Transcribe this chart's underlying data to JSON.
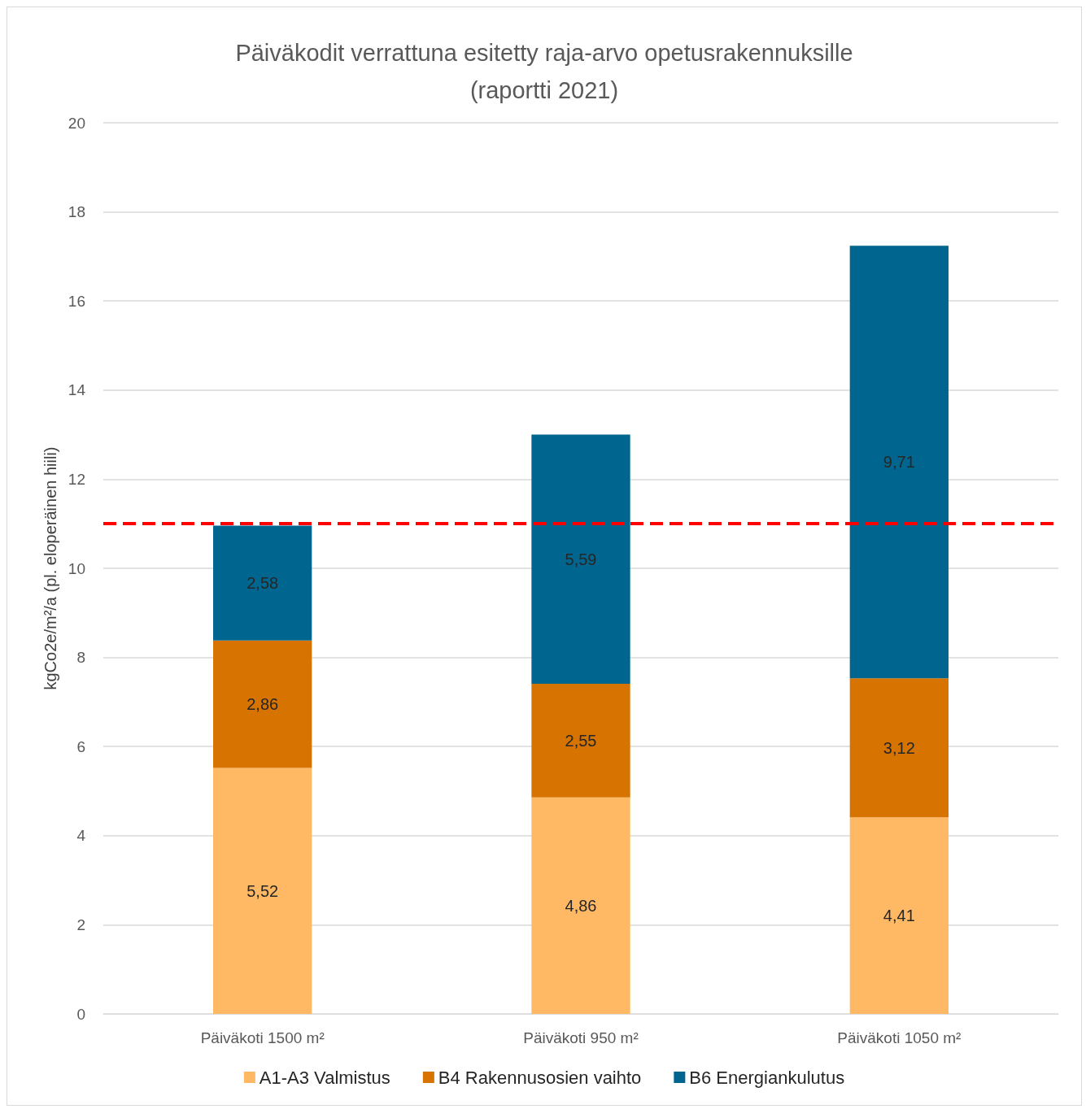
{
  "chart_data": {
    "type": "bar",
    "title": "Päiväkodit verrattuna esitetty raja-arvo opetusrakennuksille\n(raportti 2021)",
    "ylabel": "kgCo2e/m²/a (pl. eloperäinen hiili)",
    "categories": [
      "Päiväkoti 1500 m²",
      "Päiväkoti 950 m²",
      "Päiväkoti 1050 m²"
    ],
    "stacked": true,
    "series": [
      {
        "name": "A1-A3 Valmistus",
        "color": "#ffb964",
        "values": [
          5.52,
          4.86,
          4.41
        ],
        "value_labels": [
          "5,52",
          "4,86",
          "4,41"
        ]
      },
      {
        "name": "B4 Rakennusosien vaihto",
        "color": "#d77300",
        "values": [
          2.86,
          2.55,
          3.12
        ],
        "value_labels": [
          "2,86",
          "2,55",
          "3,12"
        ]
      },
      {
        "name": "B6 Energiankulutus",
        "color": "#00668f",
        "values": [
          2.58,
          5.59,
          9.71
        ],
        "value_labels": [
          "2,58",
          "5,59",
          "9,71"
        ]
      }
    ],
    "ylim": [
      0,
      20
    ],
    "yticks": [
      0,
      2,
      4,
      6,
      8,
      10,
      12,
      14,
      16,
      18,
      20
    ],
    "grid": "y",
    "legend": "bottom",
    "ref_lines": [
      {
        "axis": "y",
        "value": 11,
        "color": "#ff0000",
        "line_style": "dashed"
      }
    ]
  }
}
